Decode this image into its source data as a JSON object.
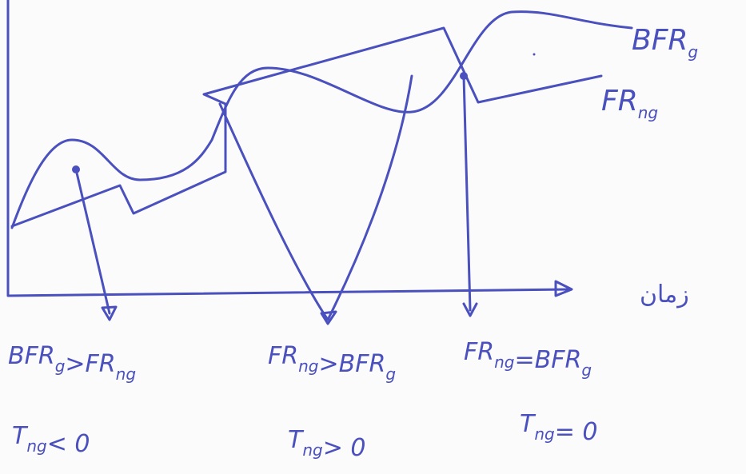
{
  "curve_labels": [
    {
      "main": "BFR",
      "sub": "g"
    },
    {
      "main": "FR",
      "sub": "ng"
    }
  ],
  "axis_label": "زمان",
  "conditions": [
    {
      "relation": [
        {
          "main": "BFR",
          "sub": "g"
        },
        ">",
        {
          "main": "FR",
          "sub": "ng"
        }
      ],
      "result": [
        {
          "main": "T",
          "sub": "ng"
        },
        "< 0"
      ]
    },
    {
      "relation": [
        {
          "main": "FR",
          "sub": "ng"
        },
        ">",
        {
          "main": "BFR",
          "sub": "g"
        }
      ],
      "result": [
        {
          "main": "T",
          "sub": "ng"
        },
        "> 0"
      ]
    },
    {
      "relation": [
        {
          "main": "FR",
          "sub": "ng"
        },
        "=",
        {
          "main": "BFR",
          "sub": "g"
        }
      ],
      "result": [
        {
          "main": "T",
          "sub": "ng"
        },
        "= 0"
      ]
    }
  ]
}
